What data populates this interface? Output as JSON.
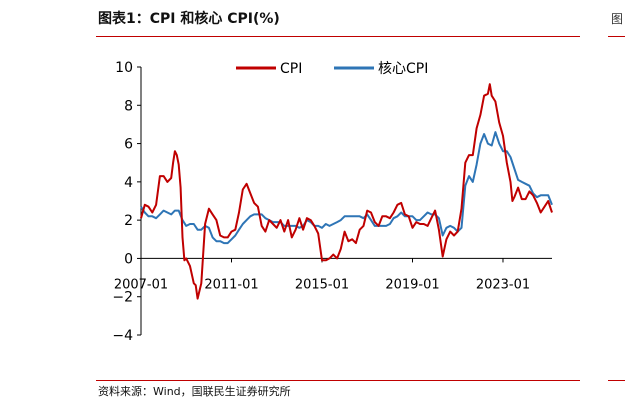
{
  "figure": {
    "title": "图表1：CPI 和核心 CPI(%)",
    "source": "资料来源：Wind，国联民生证券研究所",
    "right_marker": "图"
  },
  "colors": {
    "cpi": "#c00000",
    "core_cpi": "#2e75b6",
    "rule": "#c00000",
    "axis": "#000000"
  },
  "chart_data": {
    "type": "line",
    "title": "",
    "xlabel": "",
    "ylabel": "",
    "ylim": [
      -4,
      10
    ],
    "yticks": [
      -4,
      -2,
      0,
      2,
      4,
      6,
      8,
      10
    ],
    "yticklabels": [
      "−4",
      "−2",
      "0",
      "2",
      "4",
      "6",
      "8",
      "10"
    ],
    "xlim": [
      "2007-01",
      "2025-03"
    ],
    "xticks": [
      "2007-01",
      "2011-01",
      "2015-01",
      "2019-01",
      "2023-01"
    ],
    "grid": false,
    "legend_position": "top-center",
    "series": [
      {
        "name": "CPI",
        "color_key": "cpi",
        "points": [
          [
            "2007-01",
            2.1
          ],
          [
            "2007-03",
            2.8
          ],
          [
            "2007-05",
            2.7
          ],
          [
            "2007-07",
            2.4
          ],
          [
            "2007-09",
            2.8
          ],
          [
            "2007-11",
            4.3
          ],
          [
            "2008-01",
            4.3
          ],
          [
            "2008-03",
            4.0
          ],
          [
            "2008-05",
            4.2
          ],
          [
            "2008-06",
            5.0
          ],
          [
            "2008-07",
            5.6
          ],
          [
            "2008-08",
            5.4
          ],
          [
            "2008-09",
            4.9
          ],
          [
            "2008-10",
            3.7
          ],
          [
            "2008-11",
            1.1
          ],
          [
            "2008-12",
            -0.1
          ],
          [
            "2009-01",
            0.0
          ],
          [
            "2009-03",
            -0.4
          ],
          [
            "2009-05",
            -1.3
          ],
          [
            "2009-06",
            -1.4
          ],
          [
            "2009-07",
            -2.1
          ],
          [
            "2009-09",
            -1.3
          ],
          [
            "2009-11",
            1.8
          ],
          [
            "2010-01",
            2.6
          ],
          [
            "2010-03",
            2.3
          ],
          [
            "2010-05",
            2.0
          ],
          [
            "2010-07",
            1.2
          ],
          [
            "2010-09",
            1.1
          ],
          [
            "2010-11",
            1.1
          ],
          [
            "2011-01",
            1.4
          ],
          [
            "2011-03",
            1.5
          ],
          [
            "2011-05",
            2.4
          ],
          [
            "2011-07",
            3.6
          ],
          [
            "2011-09",
            3.9
          ],
          [
            "2011-11",
            3.4
          ],
          [
            "2012-01",
            2.9
          ],
          [
            "2012-03",
            2.7
          ],
          [
            "2012-05",
            1.7
          ],
          [
            "2012-07",
            1.4
          ],
          [
            "2012-09",
            2.0
          ],
          [
            "2012-11",
            1.8
          ],
          [
            "2013-01",
            1.6
          ],
          [
            "2013-03",
            2.0
          ],
          [
            "2013-05",
            1.4
          ],
          [
            "2013-07",
            2.0
          ],
          [
            "2013-09",
            1.1
          ],
          [
            "2013-11",
            1.5
          ],
          [
            "2014-01",
            2.1
          ],
          [
            "2014-03",
            1.5
          ],
          [
            "2014-05",
            2.1
          ],
          [
            "2014-07",
            2.0
          ],
          [
            "2014-09",
            1.7
          ],
          [
            "2014-11",
            1.3
          ],
          [
            "2015-01",
            -0.1
          ],
          [
            "2015-03",
            -0.1
          ],
          [
            "2015-05",
            0.0
          ],
          [
            "2015-07",
            0.2
          ],
          [
            "2015-09",
            0.0
          ],
          [
            "2015-11",
            0.5
          ],
          [
            "2016-01",
            1.4
          ],
          [
            "2016-03",
            0.9
          ],
          [
            "2016-05",
            1.0
          ],
          [
            "2016-07",
            0.8
          ],
          [
            "2016-09",
            1.5
          ],
          [
            "2016-11",
            1.7
          ],
          [
            "2017-01",
            2.5
          ],
          [
            "2017-03",
            2.4
          ],
          [
            "2017-05",
            1.9
          ],
          [
            "2017-07",
            1.7
          ],
          [
            "2017-09",
            2.2
          ],
          [
            "2017-11",
            2.2
          ],
          [
            "2018-01",
            2.1
          ],
          [
            "2018-03",
            2.4
          ],
          [
            "2018-05",
            2.8
          ],
          [
            "2018-07",
            2.9
          ],
          [
            "2018-09",
            2.3
          ],
          [
            "2018-11",
            2.2
          ],
          [
            "2019-01",
            1.6
          ],
          [
            "2019-03",
            1.9
          ],
          [
            "2019-05",
            1.8
          ],
          [
            "2019-07",
            1.8
          ],
          [
            "2019-09",
            1.7
          ],
          [
            "2019-11",
            2.1
          ],
          [
            "2020-01",
            2.5
          ],
          [
            "2020-03",
            1.5
          ],
          [
            "2020-05",
            0.1
          ],
          [
            "2020-07",
            1.0
          ],
          [
            "2020-09",
            1.4
          ],
          [
            "2020-11",
            1.2
          ],
          [
            "2021-01",
            1.4
          ],
          [
            "2021-03",
            2.6
          ],
          [
            "2021-05",
            5.0
          ],
          [
            "2021-07",
            5.4
          ],
          [
            "2021-09",
            5.4
          ],
          [
            "2021-11",
            6.8
          ],
          [
            "2022-01",
            7.5
          ],
          [
            "2022-03",
            8.5
          ],
          [
            "2022-05",
            8.6
          ],
          [
            "2022-06",
            9.1
          ],
          [
            "2022-07",
            8.5
          ],
          [
            "2022-09",
            8.2
          ],
          [
            "2022-11",
            7.1
          ],
          [
            "2023-01",
            6.4
          ],
          [
            "2023-03",
            5.0
          ],
          [
            "2023-05",
            4.0
          ],
          [
            "2023-06",
            3.0
          ],
          [
            "2023-07",
            3.2
          ],
          [
            "2023-09",
            3.7
          ],
          [
            "2023-11",
            3.1
          ],
          [
            "2024-01",
            3.1
          ],
          [
            "2024-03",
            3.5
          ],
          [
            "2024-05",
            3.3
          ],
          [
            "2024-07",
            2.9
          ],
          [
            "2024-09",
            2.4
          ],
          [
            "2024-11",
            2.7
          ],
          [
            "2025-01",
            3.0
          ],
          [
            "2025-03",
            2.4
          ]
        ]
      },
      {
        "name": "核心CPI",
        "color_key": "core_cpi",
        "points": [
          [
            "2007-01",
            2.7
          ],
          [
            "2007-03",
            2.4
          ],
          [
            "2007-05",
            2.2
          ],
          [
            "2007-07",
            2.2
          ],
          [
            "2007-09",
            2.1
          ],
          [
            "2007-11",
            2.3
          ],
          [
            "2008-01",
            2.5
          ],
          [
            "2008-03",
            2.4
          ],
          [
            "2008-05",
            2.3
          ],
          [
            "2008-07",
            2.5
          ],
          [
            "2008-09",
            2.5
          ],
          [
            "2008-11",
            2.0
          ],
          [
            "2009-01",
            1.7
          ],
          [
            "2009-03",
            1.8
          ],
          [
            "2009-05",
            1.8
          ],
          [
            "2009-07",
            1.5
          ],
          [
            "2009-09",
            1.5
          ],
          [
            "2009-11",
            1.7
          ],
          [
            "2010-01",
            1.6
          ],
          [
            "2010-03",
            1.1
          ],
          [
            "2010-05",
            0.9
          ],
          [
            "2010-07",
            0.9
          ],
          [
            "2010-09",
            0.8
          ],
          [
            "2010-11",
            0.8
          ],
          [
            "2011-01",
            1.0
          ],
          [
            "2011-03",
            1.2
          ],
          [
            "2011-05",
            1.5
          ],
          [
            "2011-07",
            1.8
          ],
          [
            "2011-09",
            2.0
          ],
          [
            "2011-11",
            2.2
          ],
          [
            "2012-01",
            2.3
          ],
          [
            "2012-03",
            2.3
          ],
          [
            "2012-05",
            2.3
          ],
          [
            "2012-07",
            2.1
          ],
          [
            "2012-09",
            2.0
          ],
          [
            "2012-11",
            1.9
          ],
          [
            "2013-01",
            1.9
          ],
          [
            "2013-03",
            1.9
          ],
          [
            "2013-05",
            1.7
          ],
          [
            "2013-07",
            1.7
          ],
          [
            "2013-09",
            1.7
          ],
          [
            "2013-11",
            1.7
          ],
          [
            "2014-01",
            1.6
          ],
          [
            "2014-03",
            1.7
          ],
          [
            "2014-05",
            2.0
          ],
          [
            "2014-07",
            1.9
          ],
          [
            "2014-09",
            1.7
          ],
          [
            "2014-11",
            1.7
          ],
          [
            "2015-01",
            1.6
          ],
          [
            "2015-03",
            1.8
          ],
          [
            "2015-05",
            1.7
          ],
          [
            "2015-07",
            1.8
          ],
          [
            "2015-09",
            1.9
          ],
          [
            "2015-11",
            2.0
          ],
          [
            "2016-01",
            2.2
          ],
          [
            "2016-03",
            2.2
          ],
          [
            "2016-05",
            2.2
          ],
          [
            "2016-07",
            2.2
          ],
          [
            "2016-09",
            2.2
          ],
          [
            "2016-11",
            2.1
          ],
          [
            "2017-01",
            2.3
          ],
          [
            "2017-03",
            2.0
          ],
          [
            "2017-05",
            1.7
          ],
          [
            "2017-07",
            1.7
          ],
          [
            "2017-09",
            1.7
          ],
          [
            "2017-11",
            1.7
          ],
          [
            "2018-01",
            1.8
          ],
          [
            "2018-03",
            2.1
          ],
          [
            "2018-05",
            2.2
          ],
          [
            "2018-07",
            2.4
          ],
          [
            "2018-09",
            2.2
          ],
          [
            "2018-11",
            2.2
          ],
          [
            "2019-01",
            2.2
          ],
          [
            "2019-03",
            2.0
          ],
          [
            "2019-05",
            2.0
          ],
          [
            "2019-07",
            2.2
          ],
          [
            "2019-09",
            2.4
          ],
          [
            "2019-11",
            2.3
          ],
          [
            "2020-01",
            2.3
          ],
          [
            "2020-03",
            2.1
          ],
          [
            "2020-05",
            1.2
          ],
          [
            "2020-07",
            1.6
          ],
          [
            "2020-09",
            1.7
          ],
          [
            "2020-11",
            1.6
          ],
          [
            "2021-01",
            1.4
          ],
          [
            "2021-03",
            1.6
          ],
          [
            "2021-05",
            3.8
          ],
          [
            "2021-07",
            4.3
          ],
          [
            "2021-09",
            4.0
          ],
          [
            "2021-11",
            4.9
          ],
          [
            "2022-01",
            6.0
          ],
          [
            "2022-03",
            6.5
          ],
          [
            "2022-05",
            6.0
          ],
          [
            "2022-07",
            5.9
          ],
          [
            "2022-09",
            6.6
          ],
          [
            "2022-11",
            6.0
          ],
          [
            "2023-01",
            5.6
          ],
          [
            "2023-03",
            5.6
          ],
          [
            "2023-05",
            5.3
          ],
          [
            "2023-07",
            4.7
          ],
          [
            "2023-09",
            4.1
          ],
          [
            "2023-11",
            4.0
          ],
          [
            "2024-01",
            3.9
          ],
          [
            "2024-03",
            3.8
          ],
          [
            "2024-05",
            3.4
          ],
          [
            "2024-07",
            3.2
          ],
          [
            "2024-09",
            3.3
          ],
          [
            "2024-11",
            3.3
          ],
          [
            "2025-01",
            3.3
          ],
          [
            "2025-03",
            2.8
          ]
        ]
      }
    ]
  }
}
